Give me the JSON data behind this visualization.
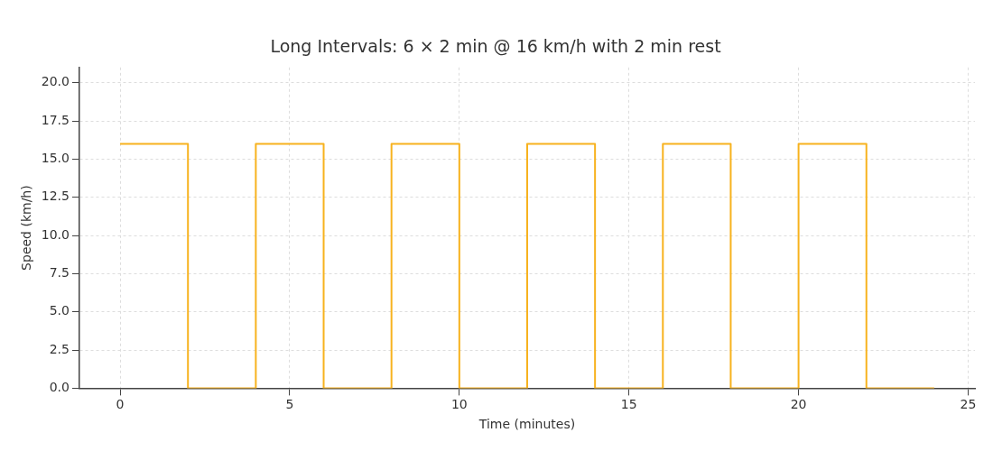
{
  "chart_data": {
    "type": "step",
    "title": "Long Intervals: 6 × 2 min @ 16 km/h with 2 min rest",
    "xlabel": "Time (minutes)",
    "ylabel": "Speed (km/h)",
    "x": [
      0,
      2,
      4,
      6,
      8,
      10,
      12,
      14,
      16,
      18,
      20,
      22,
      24
    ],
    "series": [
      {
        "color": "#f7b21e",
        "values": [
          16,
          0,
          16,
          0,
          16,
          0,
          16,
          0,
          16,
          0,
          16,
          0,
          0
        ]
      }
    ],
    "xlim": [
      -1.2,
      25.2
    ],
    "xticks": [
      0,
      5,
      10,
      15,
      20,
      25
    ],
    "ylim": [
      0,
      21
    ],
    "yticks": [
      {
        "value": 0,
        "label": "0.0"
      },
      2.5,
      {
        "value": 5,
        "label": "5.0"
      },
      7.5,
      {
        "value": 10,
        "label": "10.0"
      },
      12.5,
      {
        "value": 15,
        "label": "15.0"
      },
      17.5,
      {
        "value": 20,
        "label": "20.0"
      }
    ],
    "grid": true,
    "legend": false
  }
}
